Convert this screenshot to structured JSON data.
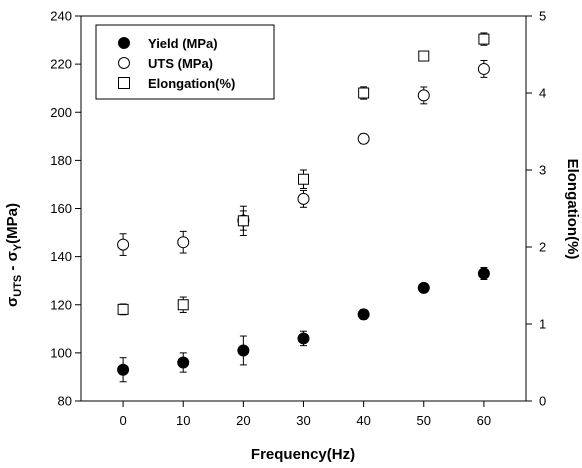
{
  "chart_data": {
    "type": "scatter",
    "x_title": "Frequency(Hz)",
    "y_title_main": "σ",
    "y_title_sub1": "UTS",
    "y_title_mid": " - σ",
    "y_title_sub2": "Y",
    "y_title_unit": "(MPa)",
    "y2_title": "Elongation(%)",
    "x_ticks": [
      "0",
      "10",
      "20",
      "30",
      "40",
      "50",
      "60"
    ],
    "y_ticks": [
      "80",
      "100",
      "120",
      "140",
      "160",
      "180",
      "200",
      "220",
      "240"
    ],
    "y2_ticks": [
      "0",
      "1",
      "2",
      "3",
      "4",
      "5"
    ],
    "xlim": [
      -7,
      67
    ],
    "ylim": [
      80,
      240
    ],
    "y2lim": [
      0,
      5
    ],
    "legend_position": "top-left",
    "series": [
      {
        "name": "Yield (MPa)",
        "marker": "filled-circle",
        "axis": "left",
        "x": [
          0,
          10,
          20,
          30,
          40,
          50,
          60
        ],
        "y": [
          93,
          96,
          101,
          106,
          116,
          127,
          133
        ],
        "err": [
          5,
          4,
          6,
          3,
          2,
          1.5,
          2.5
        ]
      },
      {
        "name": "UTS (MPa)",
        "marker": "open-circle",
        "axis": "left",
        "x": [
          0,
          10,
          20,
          30,
          40,
          50,
          60
        ],
        "y": [
          145,
          146,
          155,
          164,
          189,
          207,
          218
        ],
        "err": [
          4.5,
          4.5,
          4,
          3.5,
          2,
          3.5,
          3.5
        ]
      },
      {
        "name": "Elongation(%)",
        "marker": "open-square",
        "axis": "right",
        "x": [
          0,
          10,
          20,
          30,
          40,
          50,
          60
        ],
        "y": [
          1.19,
          1.25,
          2.34,
          2.88,
          4.0,
          4.48,
          4.7
        ],
        "err": [
          0.07,
          0.1,
          0.19,
          0.12,
          0.08,
          0.02,
          0.08
        ]
      }
    ]
  }
}
